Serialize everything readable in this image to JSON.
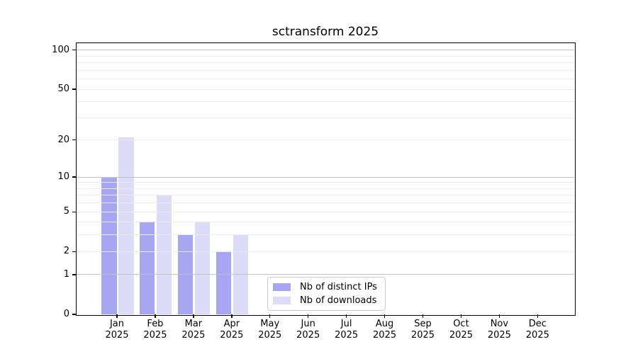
{
  "title": "sctransform 2025",
  "chart_data": {
    "type": "bar",
    "title": "sctransform 2025",
    "categories": [
      "Jan",
      "Feb",
      "Mar",
      "Apr",
      "May",
      "Jun",
      "Jul",
      "Aug",
      "Sep",
      "Oct",
      "Nov",
      "Dec"
    ],
    "year_label": "2025",
    "series": [
      {
        "key": "distinct-ips",
        "name": "Nb of distinct IPs",
        "color": "#a6a6f3",
        "values": [
          10,
          4,
          3,
          2,
          0,
          0,
          0,
          0,
          0,
          0,
          0,
          0
        ]
      },
      {
        "key": "downloads",
        "name": "Nb of downloads",
        "color": "#dcdcf9",
        "values": [
          21,
          7,
          4,
          3,
          0,
          0,
          0,
          0,
          0,
          0,
          0,
          0
        ]
      }
    ],
    "scale": "log1p",
    "ylim": [
      0,
      113
    ],
    "y_tick_labels": [
      0,
      1,
      2,
      5,
      10,
      20,
      50,
      100
    ],
    "y_major_gridlines": [
      1,
      10,
      100
    ],
    "y_minor_gridlines": [
      2,
      3,
      4,
      5,
      6,
      7,
      8,
      9,
      20,
      30,
      40,
      50,
      60,
      70,
      80,
      90
    ],
    "grid": "horizontal",
    "legend_position": "inside-bottom",
    "colors": {
      "major_grid": "#c2c2c2",
      "minor_grid": "#ebebeb",
      "axis": "#000000",
      "background": "#ffffff"
    }
  }
}
